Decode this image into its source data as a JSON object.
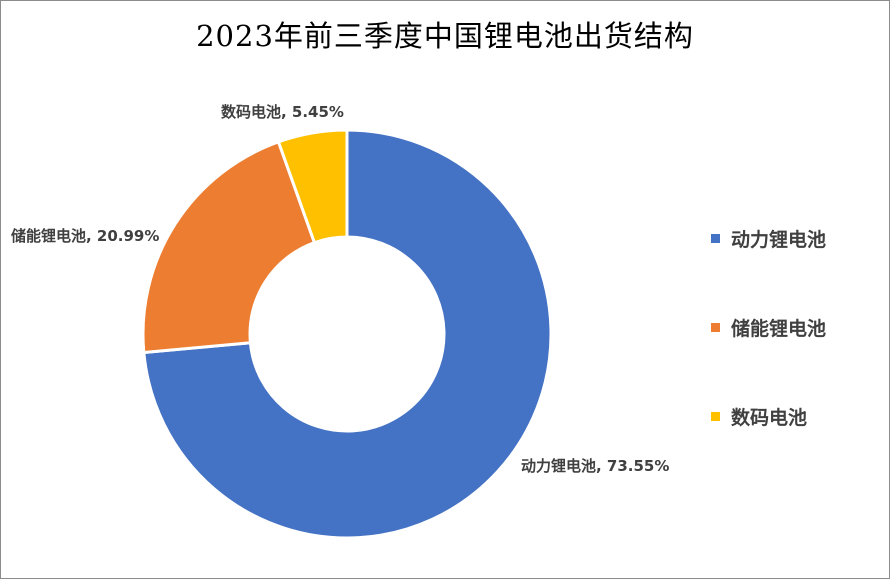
{
  "chart_data": {
    "type": "pie",
    "variant": "donut",
    "title": "2023年前三季度中国锂电池出货结构",
    "categories": [
      "动力锂电池",
      "储能锂电池",
      "数码电池"
    ],
    "values": [
      73.55,
      20.99,
      5.45
    ],
    "unit": "%",
    "colors": [
      "#4472C4",
      "#ED7D31",
      "#FFC000"
    ],
    "data_labels": [
      "动力锂电池, 73.55%",
      "储能锂电池, 20.99%",
      "数码电池, 5.45%"
    ],
    "legend": {
      "position": "right",
      "items": [
        "动力锂电池",
        "储能锂电池",
        "数码电池"
      ]
    }
  }
}
